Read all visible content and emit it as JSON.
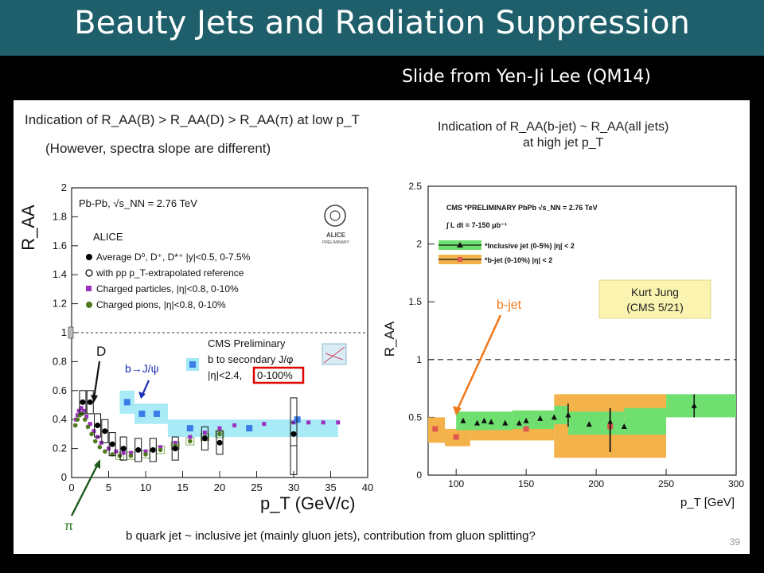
{
  "slide": {
    "title": "Beauty Jets and Radiation Suppression",
    "credit": "Slide from Yen-Ji Lee (QM14)",
    "page_number": "39"
  },
  "left": {
    "heading1": "Indication of R_AA(B) > R_AA(D) > R_AA(π) at low p_T",
    "heading2": "(However, spectra slope are different)",
    "system": "Pb-Pb, √s_NN = 2.76 TeV",
    "experiment": "ALICE",
    "logo_text": "ALICE",
    "logo_sub": "PRELIMINARY",
    "legend": [
      "Average D⁰, D⁺, D*⁺ |y|<0.5, 0-7.5%",
      "with pp p_T-extrapolated reference",
      "Charged particles, |η|<0.8, 0-10%",
      "Charged pions, |η|<0.8, 0-10%"
    ],
    "cms_box": {
      "line1": "CMS Preliminary",
      "line2": "b to secondary J/φ",
      "line3": "|η|<2.4,",
      "highlight": "0-100%"
    },
    "label_D": "D",
    "label_bJpsi": "b→J/ψ",
    "label_pi": "π",
    "ylabel": "R_AA",
    "xlabel": "p_T (GeV/c)",
    "colors": {
      "D": "#000000",
      "charged": "#9b30c0",
      "pion": "#4f7a1c",
      "bjpsi": "#3a7de8",
      "bjpsi_band": "#9fe8f5",
      "annot": "#1b2fb8",
      "pi_arrow": "#1f5a1c",
      "highlight": "#e00000"
    }
  },
  "right": {
    "heading1": "Indication of R_AA(b-jet) ~ R_AA(all jets)",
    "heading2": "at high jet p_T",
    "cms_line": "CMS *PRELIMINARY PbPb √s_NN = 2.76 TeV",
    "lumi": "∫ L dt = 7-150 μb⁻¹",
    "legend": [
      "*Inclusive jet (0-5%) |η| < 2",
      "*b-jet (0-10%) |η| < 2"
    ],
    "note_line1": "Kurt Jung",
    "note_line2": "(CMS 5/21)",
    "bjet_label": "b-jet",
    "ylabel": "R_AA",
    "xlabel": "p_T [GeV]",
    "colors": {
      "inclusive_band": "#6fe06f",
      "bjet_band": "#f4b24a",
      "bjet_marker": "#e0574f",
      "note_bg": "#fbf3b0",
      "arrow": "#f07a1e"
    }
  },
  "caption": "b quark jet ~ inclusive jet (mainly gluon jets), contribution from gluon splitting?",
  "chart_data": [
    {
      "type": "scatter",
      "title": "Indication of R_AA(B) > R_AA(D) > R_AA(π) at low p_T",
      "xlabel": "p_T (GeV/c)",
      "ylabel": "R_AA",
      "xlim": [
        0,
        40
      ],
      "ylim": [
        0,
        2
      ],
      "xticks": [
        0,
        5,
        10,
        15,
        20,
        25,
        30,
        35,
        40
      ],
      "yticks": [
        0,
        0.2,
        0.4,
        0.6,
        0.8,
        1,
        1.2,
        1.4,
        1.6,
        1.8,
        2
      ],
      "reference_line": 1.0,
      "series": [
        {
          "name": "Average D⁰, D⁺, D*⁺ |y|<0.5, 0-7.5%",
          "x": [
            1.5,
            2.5,
            3.5,
            4.5,
            5.5,
            7,
            9,
            11,
            14,
            18,
            20,
            30
          ],
          "y": [
            0.52,
            0.52,
            0.36,
            0.32,
            0.23,
            0.2,
            0.19,
            0.19,
            0.2,
            0.27,
            0.24,
            0.3
          ]
        },
        {
          "name": "Charged particles, |η|<0.8, 0-10%",
          "x": [
            0.6,
            0.8,
            1.0,
            1.3,
            1.6,
            2.0,
            2.5,
            3.0,
            3.5,
            4.0,
            5.0,
            6.0,
            7.0,
            8.0,
            10,
            12,
            14,
            16,
            18,
            20,
            22,
            26,
            30,
            32,
            34,
            36
          ],
          "y": [
            0.4,
            0.43,
            0.46,
            0.48,
            0.46,
            0.42,
            0.37,
            0.32,
            0.28,
            0.24,
            0.2,
            0.18,
            0.17,
            0.17,
            0.18,
            0.21,
            0.24,
            0.28,
            0.31,
            0.34,
            0.36,
            0.37,
            0.38,
            0.38,
            0.38,
            0.38
          ]
        },
        {
          "name": "Charged pions, |η|<0.8, 0-10%",
          "x": [
            0.5,
            0.8,
            1.1,
            1.4,
            1.8,
            2.2,
            2.7,
            3.2,
            3.8,
            4.5,
            5.5,
            6.5,
            8,
            10,
            12,
            14,
            16,
            18,
            20
          ],
          "y": [
            0.36,
            0.4,
            0.43,
            0.44,
            0.4,
            0.35,
            0.3,
            0.25,
            0.21,
            0.18,
            0.16,
            0.15,
            0.15,
            0.16,
            0.19,
            0.22,
            0.25,
            0.28,
            0.3
          ]
        },
        {
          "name": "b to secondary J/φ",
          "x": [
            7.5,
            9.5,
            11.5,
            16,
            24,
            30.5
          ],
          "y": [
            0.52,
            0.44,
            0.44,
            0.34,
            0.34,
            0.4
          ]
        }
      ]
    },
    {
      "type": "scatter",
      "title": "Indication of R_AA(b-jet) ~ R_AA(all jets) at high jet p_T",
      "xlabel": "p_T [GeV]",
      "ylabel": "R_AA",
      "xlim": [
        80,
        300
      ],
      "ylim": [
        0,
        2.5
      ],
      "xticks": [
        100,
        150,
        200,
        250,
        300
      ],
      "yticks": [
        0,
        0.5,
        1,
        1.5,
        2,
        2.5
      ],
      "reference_line": 1.0,
      "series": [
        {
          "name": "*Inclusive jet (0-5%) |η| < 2",
          "x": [
            105,
            115,
            120,
            125,
            135,
            145,
            150,
            160,
            170,
            180,
            195,
            210,
            220,
            270
          ],
          "y": [
            0.47,
            0.45,
            0.47,
            0.46,
            0.45,
            0.45,
            0.47,
            0.49,
            0.5,
            0.52,
            0.44,
            0.46,
            0.42,
            0.6
          ]
        },
        {
          "name": "*b-jet (0-10%) |η| < 2",
          "x": [
            85,
            100,
            150,
            210
          ],
          "y": [
            0.4,
            0.33,
            0.4,
            0.42
          ]
        }
      ]
    }
  ]
}
